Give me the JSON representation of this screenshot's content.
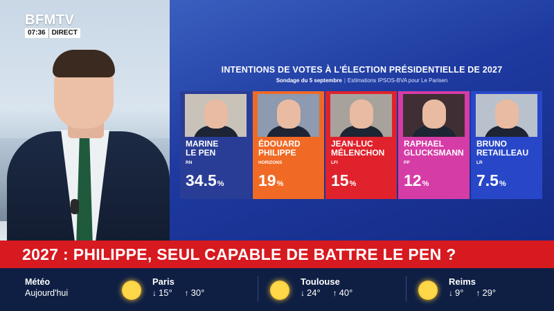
{
  "channel": {
    "logo": "BFMTV",
    "time": "07:36",
    "live_label": "DIRECT"
  },
  "poll": {
    "title": "INTENTIONS DE VOTES À L'ÉLECTION PRÉSIDENTIELLE DE 2027",
    "date": "Sondage du 5 septembre",
    "source": "Estimations IPSOS-BVA pour Le Parisen",
    "candidates": [
      {
        "name_line1": "MARINE",
        "name_line2": "LE PEN",
        "party": "RN",
        "score": "34.5",
        "color": "#2a3d96",
        "photo_bg": "#c9c2b8"
      },
      {
        "name_line1": "ÉDOUARD",
        "name_line2": "PHILIPPE",
        "party": "HORIZONS",
        "score": "19",
        "color": "#f06a25",
        "photo_bg": "#8d9ab0"
      },
      {
        "name_line1": "JEAN-LUC",
        "name_line2": "MÉLENCHON",
        "party": "LFI",
        "score": "15",
        "color": "#e0222c",
        "photo_bg": "#a8a29c"
      },
      {
        "name_line1": "RAPHAEL",
        "name_line2": "GLUCKSMANN",
        "party": "PP",
        "score": "12",
        "color": "#d63ca6",
        "photo_bg": "#3f2f34"
      },
      {
        "name_line1": "BRUNO",
        "name_line2": "RETAILLEAU",
        "party": "LR",
        "score": "7.5",
        "color": "#2847c8",
        "photo_bg": "#b9c1cc"
      }
    ],
    "percent_sign": "%"
  },
  "headline": "2027 : PHILIPPE, SEUL CAPABLE DE BATTRE LE PEN ?",
  "weather": {
    "label_line1": "Météo",
    "label_line2": "Aujourd'hui",
    "icon": "sun-icon",
    "cities": [
      {
        "name": "Paris",
        "min": "15°",
        "max": "30°"
      },
      {
        "name": "Toulouse",
        "min": "24°",
        "max": "40°"
      },
      {
        "name": "Reims",
        "min": "9°",
        "max": "29°"
      }
    ]
  }
}
